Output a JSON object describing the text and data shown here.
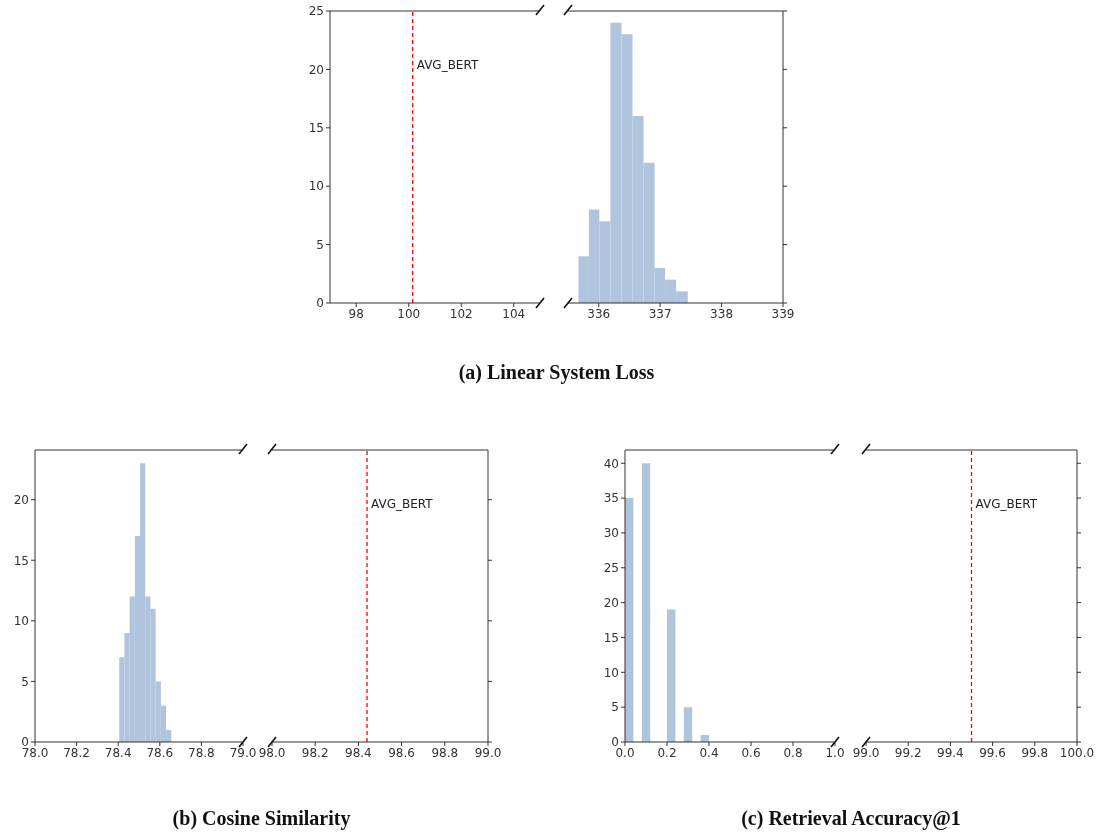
{
  "chart_data": [
    {
      "type": "histogram",
      "xlim": [
        97,
        105
      ],
      "xticks": [
        98,
        100,
        102,
        104
      ],
      "ylim": [
        0,
        25
      ],
      "yticks": [
        0,
        5,
        10,
        15,
        20,
        25
      ],
      "ref_lines": [
        {
          "axis": "x",
          "value": 100.15,
          "label": "AVG_BERT",
          "color": "#ff0000",
          "line_style": "dashed"
        }
      ],
      "annotations": [
        "(a) Linear System Loss"
      ]
    },
    {
      "type": "histogram",
      "color": "#b0c4de",
      "bins": [
        335.67,
        335.84,
        336.01,
        336.19,
        336.37,
        336.55,
        336.73,
        336.91,
        337.08,
        337.26,
        337.45
      ],
      "values": [
        4,
        8,
        7,
        24,
        23,
        16,
        12,
        3,
        2,
        1
      ],
      "xlim": [
        335.5,
        339
      ],
      "xticks": [
        336,
        337,
        338,
        339
      ],
      "ylim": [
        0,
        25
      ],
      "yticks": [
        0,
        5,
        10,
        15,
        20,
        25
      ],
      "tick_labels": "x"
    },
    {
      "type": "histogram",
      "color": "#b0c4de",
      "bins": [
        78.405,
        78.43,
        78.455,
        78.48,
        78.505,
        78.53,
        78.555,
        78.58,
        78.605,
        78.63,
        78.655
      ],
      "values": [
        7,
        9,
        12,
        17,
        23,
        12,
        11,
        5,
        3,
        1
      ],
      "xlim": [
        78,
        79
      ],
      "xticks": [
        {
          "value": 78,
          "label": "78.0"
        },
        {
          "value": 78.2,
          "label": "78.2"
        },
        {
          "value": 78.4,
          "label": "78.4"
        },
        {
          "value": 78.6,
          "label": "78.6"
        },
        {
          "value": 78.8,
          "label": "78.8"
        },
        {
          "value": 79,
          "label": "79.0"
        }
      ],
      "ylim": [
        0,
        24.1
      ],
      "yticks": [
        0,
        5,
        10,
        15,
        20
      ],
      "annotations": [
        "(b) Cosine Similarity"
      ]
    },
    {
      "type": "histogram",
      "xlim": [
        98,
        99
      ],
      "xticks": [
        {
          "value": 98,
          "label": "98.0"
        },
        {
          "value": 98.2,
          "label": "98.2"
        },
        {
          "value": 98.4,
          "label": "98.4"
        },
        {
          "value": 98.6,
          "label": "98.6"
        },
        {
          "value": 98.8,
          "label": "98.8"
        },
        {
          "value": 99,
          "label": "99.0"
        }
      ],
      "ylim": [
        0,
        24.1
      ],
      "yticks": [
        0,
        5,
        10,
        15,
        20
      ],
      "tick_labels": "x",
      "ref_lines": [
        {
          "axis": "x",
          "value": 98.44,
          "label": "AVG_BERT",
          "color": "#ff0000",
          "line_style": "dashed"
        }
      ]
    },
    {
      "type": "histogram",
      "color": "#b0c4de",
      "bins": [
        0,
        0.04,
        0.08,
        0.12,
        0.16,
        0.2,
        0.24,
        0.28,
        0.32,
        0.36,
        0.4
      ],
      "values": [
        35,
        0,
        40,
        0,
        0,
        19,
        0,
        5,
        0,
        1
      ],
      "xlim": [
        0,
        1
      ],
      "xticks": [
        {
          "value": 0,
          "label": "0.0"
        },
        {
          "value": 0.2,
          "label": "0.2"
        },
        {
          "value": 0.4,
          "label": "0.4"
        },
        {
          "value": 0.6,
          "label": "0.6"
        },
        {
          "value": 0.8,
          "label": "0.8"
        },
        {
          "value": 1,
          "label": "1.0"
        }
      ],
      "ylim": [
        0,
        41.9
      ],
      "yticks": [
        0,
        5,
        10,
        15,
        20,
        25,
        30,
        35,
        40
      ],
      "annotations": [
        "(c) Retrieval Accuracy@1"
      ]
    },
    {
      "type": "histogram",
      "xlim": [
        99,
        100
      ],
      "xticks": [
        {
          "value": 99,
          "label": "99.0"
        },
        {
          "value": 99.2,
          "label": "99.2"
        },
        {
          "value": 99.4,
          "label": "99.4"
        },
        {
          "value": 99.6,
          "label": "99.6"
        },
        {
          "value": 99.8,
          "label": "99.8"
        },
        {
          "value": 100,
          "label": "100.0"
        }
      ],
      "ylim": [
        0,
        41.9
      ],
      "yticks": [
        0,
        5,
        10,
        15,
        20,
        25,
        30,
        35,
        40
      ],
      "tick_labels": "x",
      "ref_lines": [
        {
          "axis": "x",
          "value": 99.5,
          "label": "AVG_BERT",
          "color": "#ff0000",
          "line_style": "dashed"
        }
      ]
    }
  ]
}
